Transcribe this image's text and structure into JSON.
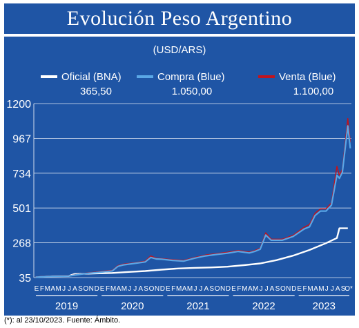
{
  "title": "Evolución Peso Argentino",
  "footnote": "(*): al 23/10/2023. Fuente: Ámbito.",
  "colors": {
    "background": "#1f55a5",
    "oficial": "#ffffff",
    "compra": "#5aa7e6",
    "venta": "#c0141e",
    "text": "#ffffff"
  },
  "chart_data": {
    "type": "line",
    "unit_label": "(USD/ARS)",
    "y_ticks": [
      "1200",
      "967",
      "734",
      "501",
      "268",
      "35"
    ],
    "ylim": [
      35,
      1200
    ],
    "x_range": [
      "2019-01",
      "2023-10"
    ],
    "month_labels": [
      [
        "E",
        "F",
        "M",
        "A",
        "M",
        "J",
        "J",
        "A",
        "S",
        "O",
        "N",
        "D"
      ],
      [
        "E",
        "F",
        "M",
        "A",
        "M",
        "J",
        "J",
        "A",
        "S",
        "O",
        "N",
        "D"
      ],
      [
        "E",
        "F",
        "M",
        "A",
        "M",
        "J",
        "J",
        "A",
        "S",
        "O",
        "N",
        "D"
      ],
      [
        "E",
        "F",
        "M",
        "A",
        "M",
        "J",
        "J",
        "A",
        "S",
        "O",
        "N",
        "D"
      ],
      [
        "E",
        "F",
        "M",
        "A",
        "M",
        "J",
        "J",
        "A",
        "S",
        "O*"
      ]
    ],
    "years": [
      "2019",
      "2020",
      "2021",
      "2022",
      "2023"
    ],
    "legend": [
      {
        "name": "Oficial (BNA)",
        "value": "365,50"
      },
      {
        "name": "Compra (Blue)",
        "value": "1.050,00"
      },
      {
        "name": "Venta (Blue)",
        "value": "1.100,00"
      }
    ],
    "series": [
      {
        "name": "Oficial (BNA)",
        "x": [
          "2019-01",
          "2019-04",
          "2019-07",
          "2019-08",
          "2019-09",
          "2019-12",
          "2020-03",
          "2020-06",
          "2020-09",
          "2020-12",
          "2021-03",
          "2021-06",
          "2021-09",
          "2021-12",
          "2022-03",
          "2022-06",
          "2022-09",
          "2022-12",
          "2023-03",
          "2023-06",
          "2023-08",
          "2023-08",
          "2023-10"
        ],
        "values": [
          38,
          44,
          45,
          58,
          60,
          63,
          66,
          73,
          79,
          88,
          96,
          100,
          103,
          108,
          118,
          130,
          152,
          182,
          220,
          265,
          300,
          365,
          365
        ]
      },
      {
        "name": "Compra (Blue)",
        "x": [
          "2019-01",
          "2019-04",
          "2019-07",
          "2019-10",
          "2019-12",
          "2020-03",
          "2020-04",
          "2020-05",
          "2020-07",
          "2020-09",
          "2020-10",
          "2020-11",
          "2020-12",
          "2021-02",
          "2021-04",
          "2021-06",
          "2021-08",
          "2021-10",
          "2021-12",
          "2022-02",
          "2022-04",
          "2022-05",
          "2022-06",
          "2022-07",
          "2022-08",
          "2022-10",
          "2022-12",
          "2023-02",
          "2023-03",
          "2023-04",
          "2023-05",
          "2023-06",
          "2023-07",
          "2023-08",
          "2023-08",
          "2023-09",
          "2023-10",
          "2023-10"
        ],
        "values": [
          38,
          44,
          45,
          62,
          68,
          80,
          110,
          120,
          130,
          140,
          170,
          160,
          158,
          150,
          145,
          165,
          180,
          190,
          198,
          210,
          200,
          210,
          225,
          320,
          285,
          285,
          310,
          360,
          375,
          450,
          480,
          480,
          520,
          720,
          700,
          740,
          1050,
          900
        ]
      },
      {
        "name": "Venta (Blue)",
        "x": [
          "2019-01",
          "2019-04",
          "2019-07",
          "2019-10",
          "2019-12",
          "2020-03",
          "2020-04",
          "2020-05",
          "2020-07",
          "2020-09",
          "2020-10",
          "2020-11",
          "2020-12",
          "2021-02",
          "2021-04",
          "2021-06",
          "2021-08",
          "2021-10",
          "2021-12",
          "2022-02",
          "2022-04",
          "2022-05",
          "2022-06",
          "2022-07",
          "2022-08",
          "2022-10",
          "2022-12",
          "2023-02",
          "2023-03",
          "2023-04",
          "2023-05",
          "2023-06",
          "2023-07",
          "2023-08",
          "2023-08",
          "2023-09",
          "2023-10",
          "2023-10"
        ],
        "values": [
          40,
          46,
          47,
          64,
          72,
          84,
          115,
          125,
          134,
          145,
          180,
          165,
          162,
          155,
          150,
          170,
          186,
          196,
          205,
          216,
          206,
          216,
          232,
          335,
          292,
          292,
          318,
          372,
          390,
          465,
          495,
          495,
          535,
          780,
          720,
          760,
          1100,
          940
        ]
      }
    ]
  }
}
